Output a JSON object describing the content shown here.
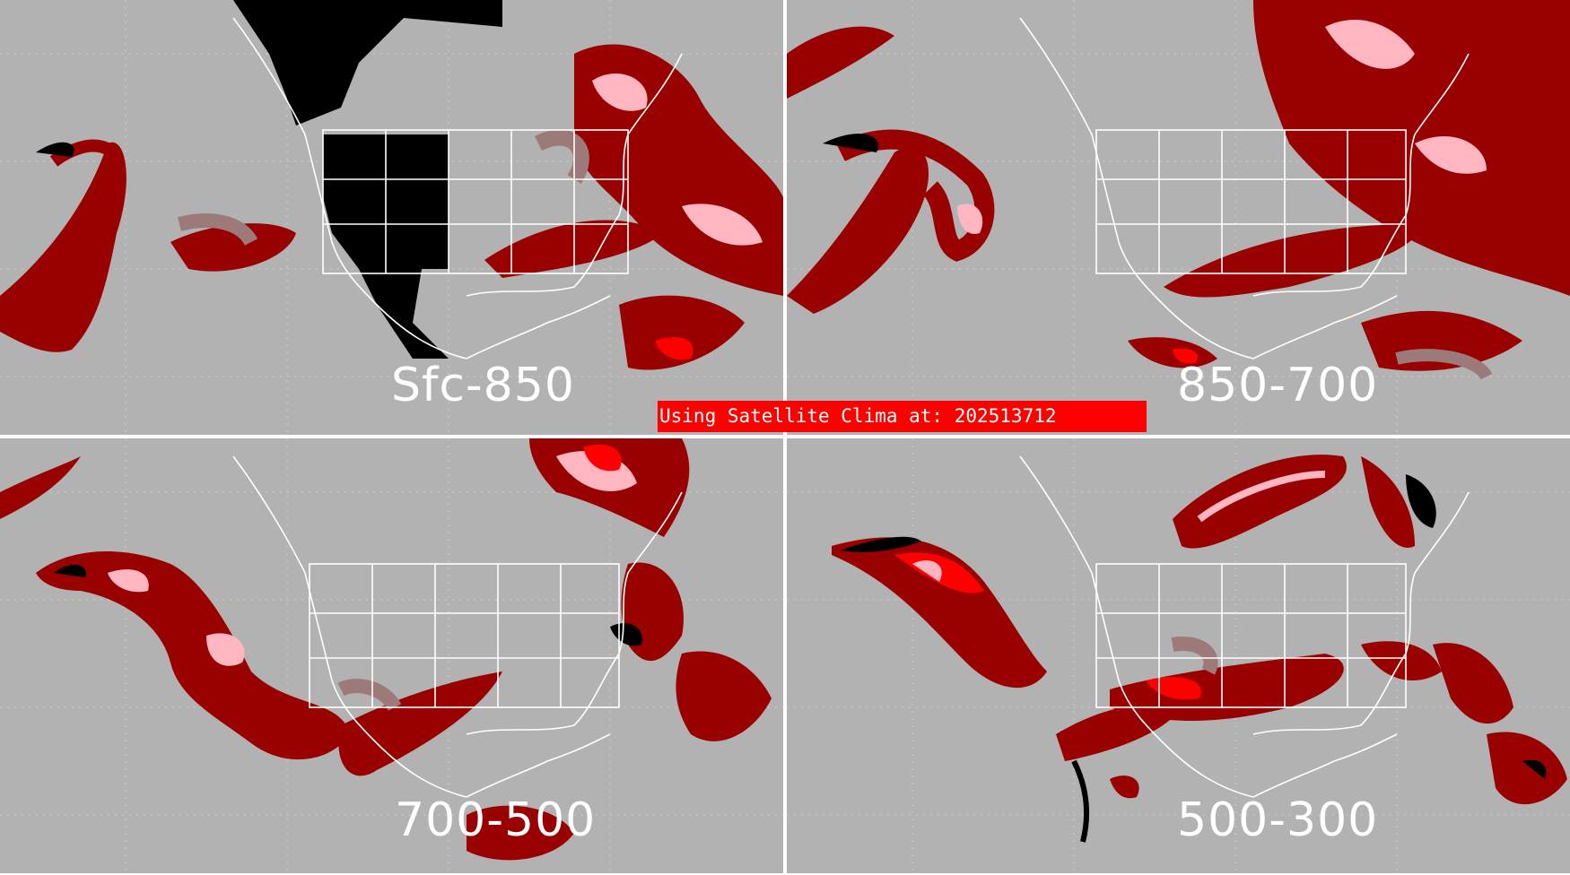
{
  "banner": {
    "text": "Using Satellite Clima at: 202513712"
  },
  "panels": [
    {
      "label": "Sfc-850"
    },
    {
      "label": "850-700"
    },
    {
      "label": "700-500"
    },
    {
      "label": "500-300"
    }
  ],
  "colors": {
    "background": "#b2b2b2",
    "dark_red": "#990000",
    "mid_red": "#cc0000",
    "bright_red": "#ff0000",
    "pink": "#ffb6c1",
    "rose_gray": "#9c7a7a",
    "black": "#000000",
    "boundaries": "#ffffff",
    "banner": "#ff0000"
  }
}
